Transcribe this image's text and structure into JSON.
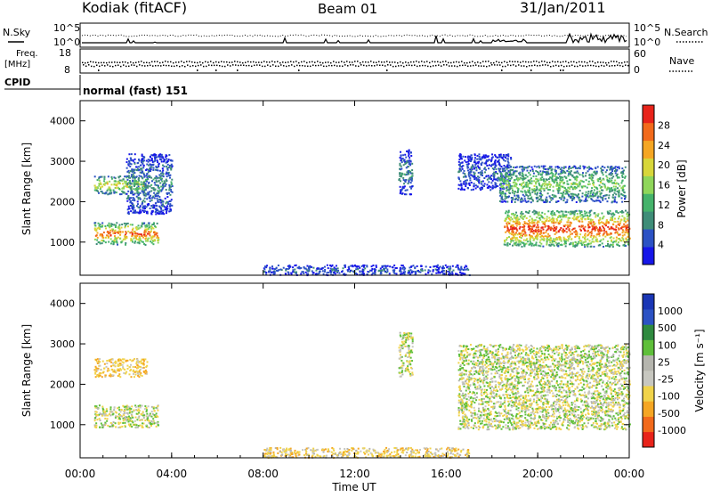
{
  "header": {
    "station": "Kodiak (fitACF)",
    "beam": "Beam 01",
    "date": "31/Jan/2011"
  },
  "noise_panel": {
    "left_label": "N.Sky",
    "right_label": "N.Search",
    "tick_top": "10^5",
    "tick_bottom": "10^0"
  },
  "freq_panel": {
    "left_label_1": "Freq.",
    "left_label_2": "[MHz]",
    "right_label": "Nave",
    "left_ticks": [
      "18",
      "8"
    ],
    "right_ticks": [
      "60",
      "0"
    ]
  },
  "cpid_panel": {
    "label": "CPID",
    "mode_text": "normal (fast) 151"
  },
  "power_panel": {
    "ylabel": "Slant Range [km]",
    "colorbar_label": "Power [dB]",
    "colorbar_ticks": [
      "28",
      "24",
      "20",
      "16",
      "12",
      "8",
      "4"
    ]
  },
  "velocity_panel": {
    "ylabel": "Slant Range [km]",
    "colorbar_label": "Velocity [m s⁻¹]",
    "colorbar_ticks": [
      "1000",
      "500",
      "100",
      "25",
      "-25",
      "-100",
      "-500",
      "-1000"
    ]
  },
  "xaxis": {
    "label": "Time UT",
    "ticks": [
      "00:00",
      "04:00",
      "08:00",
      "12:00",
      "16:00",
      "20:00",
      "00:00"
    ]
  },
  "chart_data": {
    "type": "heatmap",
    "title": "Kodiak (fitACF) Beam 01 31/Jan/2011",
    "x_range_hours": [
      0,
      24
    ],
    "y_range_km": [
      180,
      4500
    ],
    "yticks_km": [
      1000,
      2000,
      3000,
      4000
    ],
    "colors": {
      "power": [
        "#1616e8",
        "#2c52c4",
        "#3f8d78",
        "#45b36b",
        "#8fd65a",
        "#d7d63a",
        "#f5a623",
        "#f26a1b",
        "#e8231a"
      ],
      "velocity": [
        "#e8231a",
        "#f26a1b",
        "#f5a623",
        "#f0d34a",
        "#c7c7c0",
        "#b5b5ae",
        "#5fbf3a",
        "#2f8a3f",
        "#2c52c4",
        "#1a36b5"
      ]
    },
    "power_regions": [
      {
        "t_start": 0.6,
        "t_end": 3.4,
        "range_low": 950,
        "range_high": 1500,
        "peak_dB": 24
      },
      {
        "t_start": 0.6,
        "t_end": 2.9,
        "range_low": 2200,
        "range_high": 2650,
        "peak_dB": 18
      },
      {
        "t_start": 2.0,
        "t_end": 4.0,
        "range_low": 1700,
        "range_high": 3200,
        "peak_dB": 8
      },
      {
        "t_start": 13.9,
        "t_end": 14.5,
        "range_low": 2200,
        "range_high": 3300,
        "peak_dB": 8
      },
      {
        "t_start": 16.5,
        "t_end": 18.8,
        "range_low": 2300,
        "range_high": 3200,
        "peak_dB": 6
      },
      {
        "t_start": 18.5,
        "t_end": 24.0,
        "range_low": 900,
        "range_high": 1800,
        "peak_dB": 26
      },
      {
        "t_start": 18.3,
        "t_end": 23.8,
        "range_low": 2000,
        "range_high": 2900,
        "peak_dB": 14
      },
      {
        "t_start": 8.0,
        "t_end": 17.0,
        "range_low": 200,
        "range_high": 450,
        "peak_dB": 6
      }
    ],
    "velocity_regions": [
      {
        "t_start": 0.6,
        "t_end": 3.4,
        "range_low": 950,
        "range_high": 1500,
        "velocity_ms": 0
      },
      {
        "t_start": 0.6,
        "t_end": 2.9,
        "range_low": 2200,
        "range_high": 2650,
        "velocity_ms": -80
      },
      {
        "t_start": 13.9,
        "t_end": 14.5,
        "range_low": 2200,
        "range_high": 3300,
        "velocity_ms": 0
      },
      {
        "t_start": 16.5,
        "t_end": 24.0,
        "range_low": 900,
        "range_high": 3000,
        "velocity_ms": 0
      },
      {
        "t_start": 8.0,
        "t_end": 17.0,
        "range_low": 200,
        "range_high": 450,
        "velocity_ms": -60
      }
    ]
  }
}
